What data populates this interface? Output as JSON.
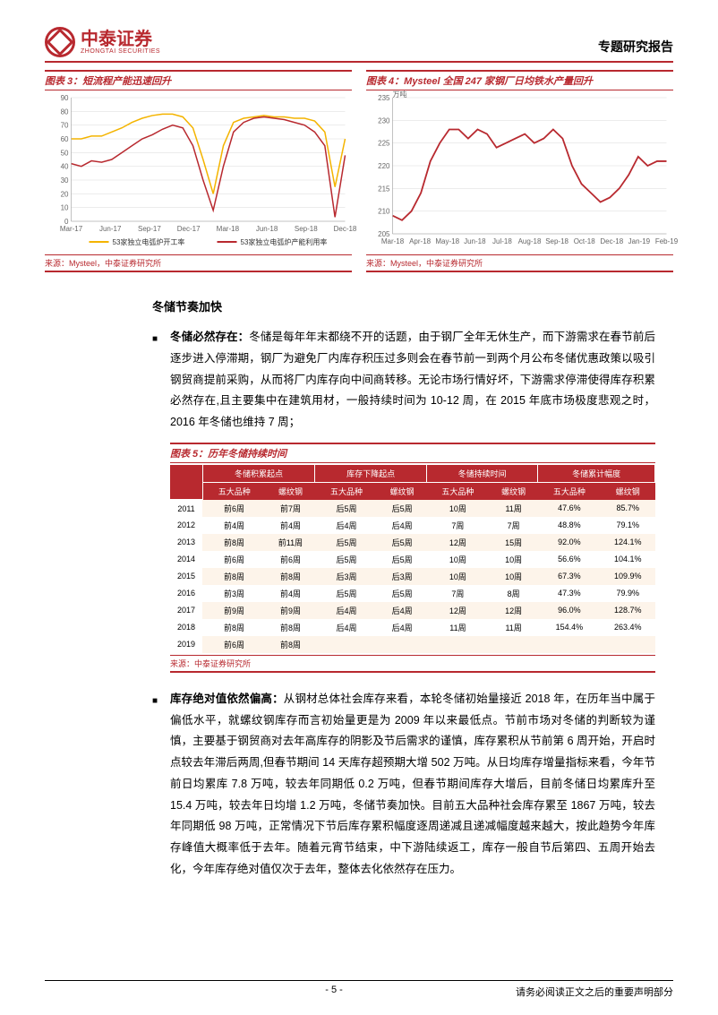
{
  "header": {
    "logo_cn": "中泰证券",
    "logo_en": "ZHONGTAI SECURITIES",
    "report_type": "专题研究报告"
  },
  "chart3": {
    "type": "line",
    "title": "图表 3：短流程产能迅速回升",
    "source": "来源：Mysteel，中泰证券研究所",
    "x_labels": [
      "Mar-17",
      "Jun-17",
      "Sep-17",
      "Dec-17",
      "Mar-18",
      "Jun-18",
      "Sep-18",
      "Dec-18"
    ],
    "ylim": [
      0,
      90
    ],
    "ytick_step": 10,
    "series": [
      {
        "name": "53家独立电弧炉开工率",
        "color": "#f4b400",
        "values": [
          60,
          60,
          62,
          62,
          65,
          68,
          72,
          75,
          77,
          78,
          78,
          76,
          68,
          45,
          20,
          55,
          72,
          75,
          76,
          77,
          76,
          76,
          75,
          75,
          73,
          65,
          25,
          60
        ]
      },
      {
        "name": "53家独立电弧炉产能利用率",
        "color": "#b8292f",
        "values": [
          42,
          40,
          44,
          43,
          45,
          50,
          55,
          60,
          63,
          67,
          70,
          68,
          55,
          30,
          8,
          40,
          65,
          72,
          75,
          76,
          75,
          74,
          72,
          70,
          65,
          55,
          3,
          48
        ]
      }
    ],
    "line_width": 1.5,
    "background_color": "#ffffff",
    "grid_color": "#d9d9d9"
  },
  "chart4": {
    "type": "line",
    "title": "图表 4：Mysteel 全国 247 家钢厂日均铁水产量回升",
    "source": "来源：Mysteel，中泰证券研究所",
    "y_unit": "万吨",
    "x_labels": [
      "Mar-18",
      "Apr-18",
      "May-18",
      "Jun-18",
      "Jul-18",
      "Aug-18",
      "Sep-18",
      "Oct-18",
      "Dec-18",
      "Jan-19",
      "Feb-19"
    ],
    "ylim": [
      205,
      235
    ],
    "ytick_step": 5,
    "series": [
      {
        "name": "铁水产量",
        "color": "#b8292f",
        "values": [
          209,
          208,
          210,
          214,
          221,
          225,
          228,
          228,
          226,
          228,
          227,
          224,
          225,
          226,
          227,
          225,
          226,
          228,
          226,
          220,
          216,
          214,
          212,
          213,
          215,
          218,
          222,
          220,
          221,
          221
        ]
      }
    ],
    "line_width": 1.8,
    "background_color": "#ffffff",
    "grid_color": "#d9d9d9"
  },
  "section1_heading": "冬储节奏加快",
  "para1": {
    "lead": "冬储必然存在：",
    "text": "冬储是每年年末都绕不开的话题，由于钢厂全年无休生产，而下游需求在春节前后逐步进入停滞期，钢厂为避免厂内库存积压过多则会在春节前一到两个月公布冬储优惠政策以吸引钢贸商提前采购，从而将厂内库存向中间商转移。无论市场行情好坏，下游需求停滞使得库存积累必然存在,且主要集中在建筑用材，一般持续时间为 10-12 周，在 2015 年底市场极度悲观之时，2016 年冬储也维持 7 周；"
  },
  "table5": {
    "title": "图表 5：历年冬储持续时间",
    "source": "来源：中泰证券研究所",
    "group_headers": [
      "",
      "冬储积累起点",
      "库存下降起点",
      "冬储持续时间",
      "冬储累计幅度"
    ],
    "sub_headers": [
      "",
      "五大品种",
      "螺纹钢",
      "五大品种",
      "螺纹钢",
      "五大品种",
      "螺纹钢",
      "五大品种",
      "螺纹钢"
    ],
    "rows": [
      [
        "2011",
        "前6周",
        "前7周",
        "后5周",
        "后5周",
        "10周",
        "11周",
        "47.6%",
        "85.7%"
      ],
      [
        "2012",
        "前4周",
        "前4周",
        "后4周",
        "后4周",
        "7周",
        "7周",
        "48.8%",
        "79.1%"
      ],
      [
        "2013",
        "前8周",
        "前11周",
        "后5周",
        "后5周",
        "12周",
        "15周",
        "92.0%",
        "124.1%"
      ],
      [
        "2014",
        "前6周",
        "前6周",
        "后5周",
        "后5周",
        "10周",
        "10周",
        "56.6%",
        "104.1%"
      ],
      [
        "2015",
        "前8周",
        "前8周",
        "后3周",
        "后3周",
        "10周",
        "10周",
        "67.3%",
        "109.9%"
      ],
      [
        "2016",
        "前3周",
        "前4周",
        "后5周",
        "后5周",
        "7周",
        "8周",
        "47.3%",
        "79.9%"
      ],
      [
        "2017",
        "前9周",
        "前9周",
        "后4周",
        "后4周",
        "12周",
        "12周",
        "96.0%",
        "128.7%"
      ],
      [
        "2018",
        "前8周",
        "前8周",
        "后4周",
        "后4周",
        "11周",
        "11周",
        "154.4%",
        "263.4%"
      ],
      [
        "2019",
        "前6周",
        "前8周",
        "",
        "",
        "",
        "",
        "",
        ""
      ]
    ]
  },
  "para2": {
    "lead": "库存绝对值依然偏高：",
    "text": "从钢材总体社会库存来看，本轮冬储初始量接近 2018 年，在历年当中属于偏低水平，就螺纹钢库存而言初始量更是为 2009 年以来最低点。节前市场对冬储的判断较为谨慎，主要基于钢贸商对去年高库存的阴影及节后需求的谨慎，库存累积从节前第 6 周开始，开启时点较去年滞后两周,但春节期间 14 天库存超预期大增 502 万吨。从日均库存增量指标来看，今年节前日均累库 7.8 万吨，较去年同期低 0.2 万吨，但春节期间库存大增后，目前冬储日均累库升至 15.4 万吨，较去年日均增 1.2 万吨，冬储节奏加快。目前五大品种社会库存累至 1867 万吨，较去年同期低 98 万吨，正常情况下节后库存累积幅度逐周递减且递减幅度越来越大，按此趋势今年库存峰值大概率低于去年。随着元宵节结束，中下游陆续返工，库存一般自节后第四、五周开始去化，今年库存绝对值仅次于去年，整体去化依然存在压力。"
  },
  "footer": {
    "page_num": "- 5 -",
    "disclaimer": "请务必阅读正文之后的重要声明部分"
  }
}
